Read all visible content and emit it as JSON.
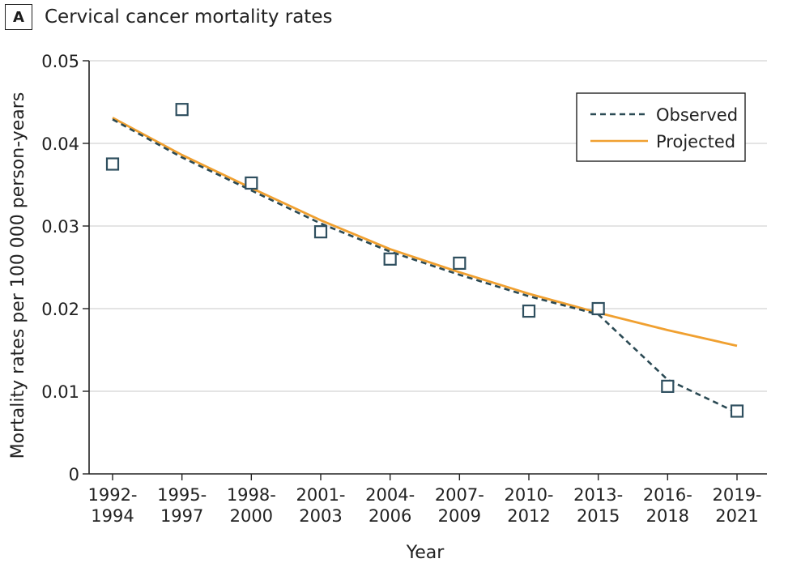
{
  "panel": {
    "letter": "A",
    "title": "Cervical cancer mortality rates"
  },
  "chart_data": {
    "type": "line",
    "title": "Cervical cancer mortality rates",
    "xlabel": "Year",
    "ylabel": "Mortality rates per 100 000 person-years",
    "categories": [
      [
        "1992-",
        "1994"
      ],
      [
        "1995-",
        "1997"
      ],
      [
        "1998-",
        "2000"
      ],
      [
        "2001-",
        "2003"
      ],
      [
        "2004-",
        "2006"
      ],
      [
        "2007-",
        "2009"
      ],
      [
        "2010-",
        "2012"
      ],
      [
        "2013-",
        "2015"
      ],
      [
        "2016-",
        "2018"
      ],
      [
        "2019-",
        "2021"
      ]
    ],
    "ylim": [
      0,
      0.05
    ],
    "yticks": [
      0,
      0.01,
      0.02,
      0.03,
      0.04,
      0.05
    ],
    "ytick_labels": [
      "0",
      "0.01",
      "0.02",
      "0.03",
      "0.04",
      "0.05"
    ],
    "grid": true,
    "legend_position": "top-right",
    "observed_points": [
      0.0375,
      0.0441,
      0.0352,
      0.0293,
      0.026,
      0.0255,
      0.0197,
      0.02,
      0.0106,
      0.0076
    ],
    "series": [
      {
        "name": "Observed",
        "style": "dashed",
        "color": "#2b4a54",
        "values": [
          0.0429,
          0.0383,
          0.0343,
          0.0303,
          0.0269,
          0.0241,
          0.0215,
          0.0193,
          0.0114,
          0.0074
        ]
      },
      {
        "name": "Projected",
        "style": "solid",
        "color": "#f0a030",
        "values": [
          0.0431,
          0.0386,
          0.0346,
          0.0307,
          0.0272,
          0.0244,
          0.0218,
          0.0195,
          0.0174,
          0.0155
        ]
      }
    ],
    "marker_color": "#2f4f5f"
  }
}
